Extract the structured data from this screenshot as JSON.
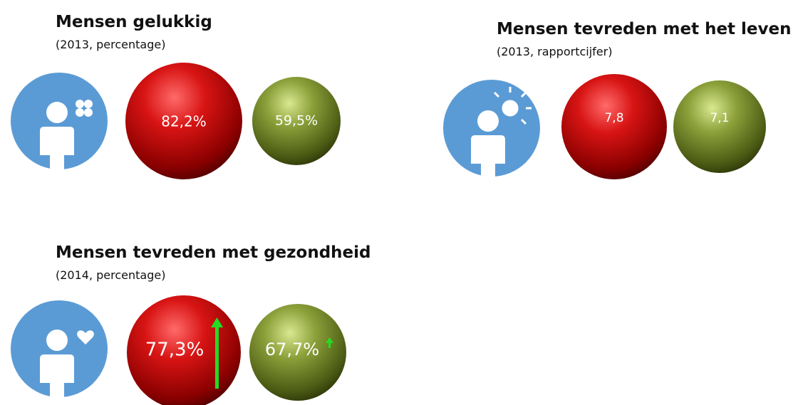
{
  "panels": [
    {
      "title": "Mensen gelukkig",
      "subtitle": "(2013, percentage)",
      "values": [
        "82,2%",
        "59,5%"
      ]
    },
    {
      "title": "Mensen tevreden met het leven",
      "subtitle": "(2013, rapportcijfer)",
      "values": [
        "7,8",
        "7,1"
      ]
    },
    {
      "title": "Mensen tevreden met gezondheid",
      "subtitle": "(2014, percentage)",
      "values": [
        "77,3%",
        "67,7%"
      ]
    }
  ]
}
